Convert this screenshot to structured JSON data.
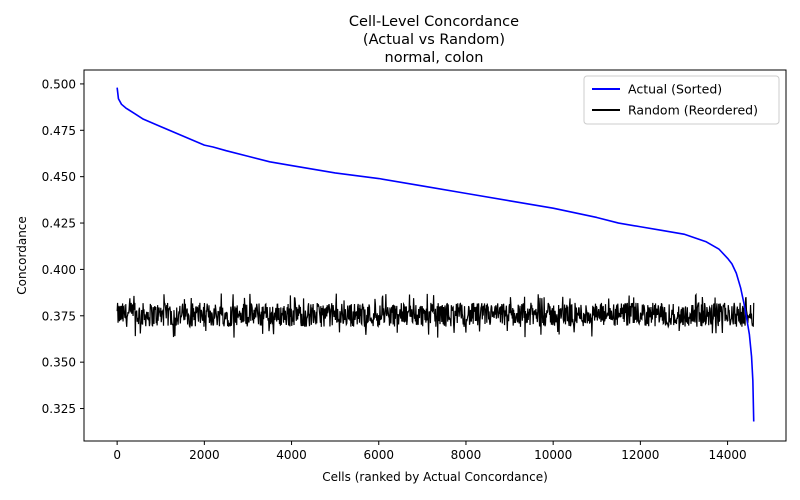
{
  "chart_data": {
    "type": "line",
    "title_lines": [
      "Cell-Level Concordance",
      "(Actual vs Random)",
      "normal, colon"
    ],
    "xlabel": "Cells (ranked by Actual Concordance)",
    "ylabel": "Concordance",
    "xlim": [
      -760,
      15340
    ],
    "ylim": [
      0.3075,
      0.5075
    ],
    "x_ticks": [
      0,
      2000,
      4000,
      6000,
      8000,
      10000,
      12000,
      14000
    ],
    "x_tick_labels": [
      "0",
      "2000",
      "4000",
      "6000",
      "8000",
      "10000",
      "12000",
      "14000"
    ],
    "y_ticks": [
      0.325,
      0.35,
      0.375,
      0.4,
      0.425,
      0.45,
      0.475,
      0.5
    ],
    "y_tick_labels": [
      "0.325",
      "0.350",
      "0.375",
      "0.400",
      "0.425",
      "0.450",
      "0.475",
      "0.500"
    ],
    "legend_position": "top-right",
    "grid": false,
    "n_cells": 14600,
    "series": [
      {
        "name": "Actual (Sorted)",
        "color": "#0000ff",
        "x": [
          0,
          30,
          100,
          200,
          400,
          600,
          800,
          1000,
          1500,
          2000,
          2200,
          2500,
          3000,
          3500,
          4000,
          5000,
          6000,
          7000,
          8000,
          9000,
          10000,
          11000,
          11500,
          12000,
          12500,
          13000,
          13500,
          13800,
          14000,
          14100,
          14200,
          14300,
          14400,
          14500,
          14550,
          14580,
          14600
        ],
        "y": [
          0.498,
          0.492,
          0.489,
          0.487,
          0.484,
          0.481,
          0.479,
          0.477,
          0.472,
          0.467,
          0.466,
          0.464,
          0.461,
          0.458,
          0.456,
          0.452,
          0.449,
          0.445,
          0.441,
          0.437,
          0.433,
          0.428,
          0.425,
          0.423,
          0.421,
          0.419,
          0.415,
          0.411,
          0.406,
          0.403,
          0.398,
          0.39,
          0.379,
          0.365,
          0.353,
          0.34,
          0.318
        ]
      },
      {
        "name": "Random (Reordered)",
        "color": "#000000",
        "mean": 0.375,
        "band": [
          0.369,
          0.382
        ],
        "extremes": [
          0.363,
          0.387
        ],
        "x_range": [
          0,
          14600
        ]
      }
    ]
  }
}
